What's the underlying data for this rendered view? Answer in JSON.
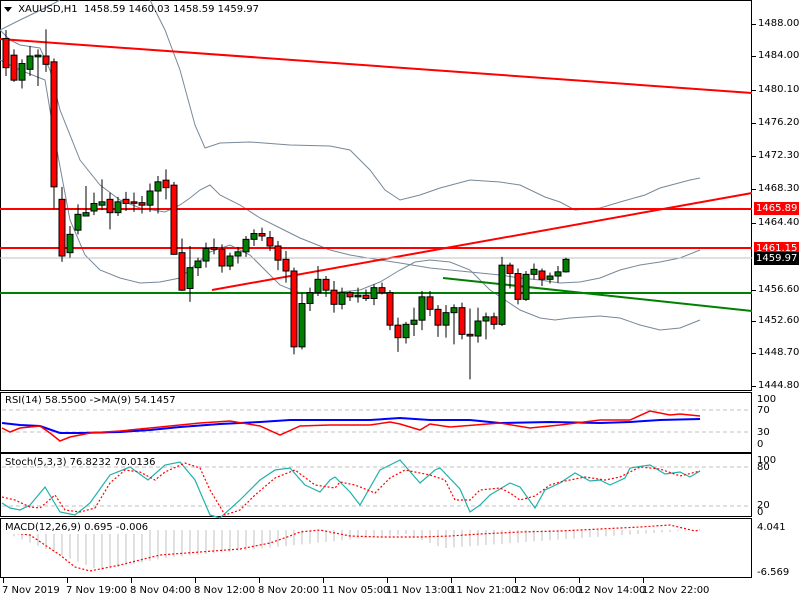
{
  "header": {
    "symbol": "XAUUSD,H1",
    "open": "1458.59",
    "high": "1460.03",
    "low": "1458.59",
    "close": "1459.97",
    "dropdown_icon": "triangle-down-icon"
  },
  "price_axis": {
    "ticks": [
      "1488.00",
      "1484.00",
      "1480.10",
      "1476.20",
      "1472.30",
      "1468.30",
      "1464.40",
      "1456.60",
      "1452.60",
      "1448.70",
      "1444.80"
    ],
    "tags": [
      {
        "label": "1465.89",
        "color": "#ff0000"
      },
      {
        "label": "1461.15",
        "color": "#ff0000"
      },
      {
        "label": "1459.97",
        "color": "#000000"
      }
    ]
  },
  "rsi": {
    "title": "RSI(14) 58.5500  ->MA(9) 54.1457",
    "levels": [
      "100",
      "70",
      "30",
      "0"
    ]
  },
  "stoch": {
    "title": "Stoch(5,3,3) 76.8232 70.0136",
    "levels": [
      "100",
      "80",
      "20",
      "0"
    ]
  },
  "macd": {
    "title": "MACD(12,26,9) 0.695 -0.006",
    "levels": [
      "4.041",
      "0.000",
      "-6.569"
    ],
    "top_label": "4.041",
    "bottom_label": "-6.569"
  },
  "time_axis": {
    "labels": [
      "7 Nov 2019",
      "7 Nov 19:00",
      "8 Nov 04:00",
      "8 Nov 12:00",
      "8 Nov 20:00",
      "11 Nov 05:00",
      "11 Nov 13:00",
      "11 Nov 21:00",
      "12 Nov 06:00",
      "12 Nov 14:00",
      "12 Nov 22:00"
    ]
  },
  "colors": {
    "bull": "#008000",
    "bear": "#ff0000",
    "bands": "#778899",
    "trend_red": "#ff0000",
    "trend_green": "#008000",
    "rsi_line": "#ff0000",
    "rsi_ma": "#0000ff",
    "stoch_main": "#20b2aa",
    "stoch_signal": "#ff0000",
    "macd_hist": "#c0c0c0",
    "macd_signal": "#ff0000"
  },
  "chart_data": {
    "type": "candlestick",
    "title": "XAUUSD,H1",
    "ylim": [
      1444.8,
      1490.5
    ],
    "candles": [
      {
        "o": 1486.5,
        "h": 1487.5,
        "l": 1482.0,
        "c": 1483.0
      },
      {
        "o": 1484.5,
        "h": 1485.2,
        "l": 1481.3,
        "c": 1481.5
      },
      {
        "o": 1481.5,
        "h": 1484.0,
        "l": 1480.5,
        "c": 1483.5
      },
      {
        "o": 1482.8,
        "h": 1485.6,
        "l": 1482.0,
        "c": 1484.4
      },
      {
        "o": 1484.3,
        "h": 1485.2,
        "l": 1480.8,
        "c": 1484.5
      },
      {
        "o": 1484.4,
        "h": 1487.6,
        "l": 1482.5,
        "c": 1483.4
      },
      {
        "o": 1483.7,
        "h": 1484.1,
        "l": 1466.1,
        "c": 1468.7
      },
      {
        "o": 1467.2,
        "h": 1468.7,
        "l": 1459.7,
        "c": 1460.4
      },
      {
        "o": 1460.8,
        "h": 1464.0,
        "l": 1460.2,
        "c": 1463.0
      },
      {
        "o": 1463.5,
        "h": 1466.6,
        "l": 1463.0,
        "c": 1465.4
      },
      {
        "o": 1465.2,
        "h": 1468.8,
        "l": 1465.2,
        "c": 1465.6
      },
      {
        "o": 1465.8,
        "h": 1468.0,
        "l": 1465.3,
        "c": 1466.7
      },
      {
        "o": 1466.5,
        "h": 1469.6,
        "l": 1465.9,
        "c": 1466.9
      },
      {
        "o": 1467.2,
        "h": 1468.0,
        "l": 1463.6,
        "c": 1465.6
      },
      {
        "o": 1465.6,
        "h": 1467.5,
        "l": 1465.2,
        "c": 1466.9
      },
      {
        "o": 1467.2,
        "h": 1468.1,
        "l": 1465.8,
        "c": 1466.7
      },
      {
        "o": 1466.9,
        "h": 1468.0,
        "l": 1465.7,
        "c": 1466.8
      },
      {
        "o": 1466.8,
        "h": 1467.6,
        "l": 1465.5,
        "c": 1466.5
      },
      {
        "o": 1466.5,
        "h": 1469.1,
        "l": 1465.7,
        "c": 1468.2
      },
      {
        "o": 1468.2,
        "h": 1470.0,
        "l": 1465.5,
        "c": 1469.3
      },
      {
        "o": 1469.5,
        "h": 1470.8,
        "l": 1467.2,
        "c": 1468.6
      },
      {
        "o": 1468.9,
        "h": 1469.3,
        "l": 1460.6,
        "c": 1460.6
      },
      {
        "o": 1460.8,
        "h": 1462.5,
        "l": 1456.2,
        "c": 1456.3
      },
      {
        "o": 1456.5,
        "h": 1461.6,
        "l": 1454.9,
        "c": 1459.0
      }
    ],
    "horizontal_lines": [
      1465.89,
      1461.15,
      1455.6
    ],
    "indicators": [
      "Bollinger Bands",
      "RSI(14)",
      "Stoch(5,3,3)",
      "MACD(12,26,9)"
    ]
  }
}
